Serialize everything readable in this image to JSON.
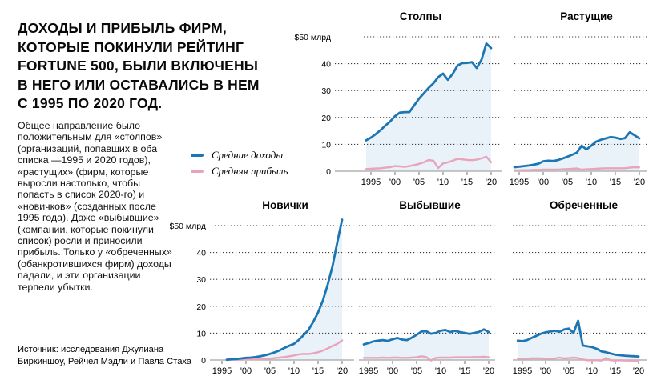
{
  "header": {
    "lines": [
      "ДОХОДЫ И ПРИБЫЛЬ ФИРМ,",
      "КОТОРЫЕ ПОКИНУЛИ РЕЙТИНГ",
      "FORTUNE 500, БЫЛИ ВКЛЮЧЕНЫ",
      "В НЕГО ИЛИ ОСТАВАЛИСЬ В НЕМ",
      "С 1995 ПО 2020 ГОД."
    ]
  },
  "intro": {
    "text": "Общее направление было положительным для «столпов» (организаций, попавших в оба списка —1995 и 2020 годов), «растущих» (фирм, которые выросли настолько, чтобы попасть в список 2020-го) и «новичков» (созданных после 1995 года). Даже «выбывшие» (компании, которые покинули список) росли и приносили прибыль. Только у «обреченных» (обанкротившихся фирм) доходы падали, и эти организации терпели убытки."
  },
  "legend": {
    "items": [
      {
        "label": "Средние доходы",
        "color": "#1d76b4"
      },
      {
        "label": "Средняя прибыль",
        "color": "#e8a4ba"
      }
    ]
  },
  "source": {
    "lines": [
      "Источник: исследования Джулиана",
      "Биркиншоу, Рейчел Мэдли и Павла Стаха"
    ]
  },
  "colors": {
    "revenue": "#1d76b4",
    "profit": "#e8a4ba",
    "area_fill": "#e9f1f9",
    "grid": "#3c3c3c",
    "axis": "#b3b3b3",
    "tick": "#8a8a8a",
    "text": "#000000"
  },
  "chart_data": [
    {
      "type": "line",
      "title": "Столпы",
      "unit": "$ млрд",
      "ylim": [
        0,
        50
      ],
      "grid": "dotted-horizontal",
      "show_y_labels": true,
      "y_ticks": [
        0,
        10,
        20,
        30,
        40,
        50
      ],
      "y_tick_labels": [
        "0",
        "10",
        "20",
        "30",
        "40",
        "$50 млрд"
      ],
      "x_tick_years": [
        1995,
        2000,
        2005,
        2010,
        2015,
        2020
      ],
      "x_tick_labels": [
        "1995",
        "'00",
        "'05",
        "'10",
        "'15",
        "'20"
      ],
      "years": [
        1994,
        1995,
        1996,
        1997,
        1998,
        1999,
        2000,
        2001,
        2002,
        2003,
        2004,
        2005,
        2006,
        2007,
        2008,
        2009,
        2010,
        2011,
        2012,
        2013,
        2014,
        2015,
        2016,
        2017,
        2018,
        2019,
        2020
      ],
      "series": [
        {
          "name": "Средние доходы",
          "values": [
            11.5,
            12.5,
            13.8,
            15.3,
            17.0,
            18.5,
            20.5,
            21.8,
            22.0,
            22.0,
            24.5,
            27.0,
            29.0,
            31.0,
            32.7,
            35.0,
            36.3,
            34.0,
            36.2,
            39.3,
            40.2,
            40.3,
            40.6,
            38.4,
            41.5,
            47.5,
            45.8
          ]
        },
        {
          "name": "Средняя прибыль",
          "values": [
            0.8,
            0.9,
            1.0,
            1.1,
            1.3,
            1.5,
            1.9,
            1.8,
            1.6,
            1.9,
            2.3,
            2.7,
            3.3,
            4.2,
            3.9,
            1.2,
            2.9,
            3.3,
            3.9,
            4.6,
            4.4,
            4.2,
            4.1,
            4.3,
            4.8,
            5.4,
            3.3
          ]
        }
      ]
    },
    {
      "type": "line",
      "title": "Растущие",
      "unit": "$ млрд",
      "ylim": [
        0,
        50
      ],
      "grid": "dotted-horizontal",
      "show_y_labels": false,
      "y_ticks": [
        0,
        10,
        20,
        30,
        40,
        50
      ],
      "y_tick_labels": [
        "0",
        "10",
        "20",
        "30",
        "40",
        "$50 млрд"
      ],
      "x_tick_years": [
        1995,
        2000,
        2005,
        2010,
        2015,
        2020
      ],
      "x_tick_labels": [
        "1995",
        "'00",
        "'05",
        "'10",
        "'15",
        "'20"
      ],
      "years": [
        1994,
        1995,
        1996,
        1997,
        1998,
        1999,
        2000,
        2001,
        2002,
        2003,
        2004,
        2005,
        2006,
        2007,
        2008,
        2009,
        2010,
        2011,
        2012,
        2013,
        2014,
        2015,
        2016,
        2017,
        2018,
        2019,
        2020
      ],
      "series": [
        {
          "name": "Средние доходы",
          "values": [
            1.5,
            1.7,
            1.9,
            2.1,
            2.4,
            2.8,
            3.7,
            3.9,
            3.8,
            4.1,
            4.7,
            5.4,
            6.1,
            6.9,
            9.5,
            8.1,
            9.5,
            11.0,
            11.7,
            12.2,
            12.7,
            12.5,
            12.0,
            12.3,
            14.5,
            13.4,
            12.2
          ]
        },
        {
          "name": "Средняя прибыль",
          "values": [
            0.3,
            0.3,
            0.4,
            0.4,
            0.5,
            0.5,
            0.6,
            0.6,
            0.6,
            0.6,
            0.7,
            0.8,
            0.9,
            1.0,
            0.6,
            0.7,
            0.8,
            0.9,
            1.0,
            1.1,
            1.1,
            1.1,
            1.1,
            1.1,
            1.3,
            1.5,
            1.4
          ]
        }
      ]
    },
    {
      "type": "line",
      "title": "Новички",
      "unit": "$ млрд",
      "ylim": [
        0,
        50
      ],
      "grid": "dotted-horizontal",
      "show_y_labels": true,
      "y_ticks": [
        0,
        10,
        20,
        30,
        40,
        50
      ],
      "y_tick_labels": [
        "0",
        "10",
        "20",
        "30",
        "40",
        "$50 млрд"
      ],
      "x_tick_years": [
        1995,
        2000,
        2005,
        2010,
        2015,
        2020
      ],
      "x_tick_labels": [
        "1995",
        "'00",
        "'05",
        "'10",
        "'15",
        "'20"
      ],
      "years": [
        1994,
        1995,
        1996,
        1997,
        1998,
        1999,
        2000,
        2001,
        2002,
        2003,
        2004,
        2005,
        2006,
        2007,
        2008,
        2009,
        2010,
        2011,
        2012,
        2013,
        2014,
        2015,
        2016,
        2017,
        2018,
        2019,
        2020
      ],
      "series": [
        {
          "name": "Средние доходы",
          "values": [
            null,
            null,
            0.1,
            0.3,
            0.4,
            0.6,
            0.8,
            0.9,
            1.1,
            1.4,
            1.8,
            2.3,
            2.9,
            3.6,
            4.5,
            5.3,
            6.0,
            7.5,
            9.3,
            11.2,
            14.2,
            17.7,
            22.1,
            28.0,
            34.9,
            43.8,
            52.2
          ]
        },
        {
          "name": "Средняя прибыль",
          "values": [
            null,
            null,
            0.05,
            0.1,
            0.1,
            0.15,
            0.2,
            0.25,
            0.3,
            0.35,
            0.4,
            0.5,
            0.7,
            0.9,
            1.1,
            1.4,
            1.7,
            2.1,
            2.3,
            2.2,
            2.5,
            2.9,
            3.5,
            4.3,
            5.2,
            6.0,
            7.3
          ]
        }
      ]
    },
    {
      "type": "line",
      "title": "Выбывшие",
      "unit": "$ млрд",
      "ylim": [
        0,
        50
      ],
      "grid": "dotted-horizontal",
      "show_y_labels": false,
      "y_ticks": [
        0,
        10,
        20,
        30,
        40,
        50
      ],
      "y_tick_labels": [
        "0",
        "10",
        "20",
        "30",
        "40",
        "$50 млрд"
      ],
      "x_tick_years": [
        1995,
        2000,
        2005,
        2010,
        2015,
        2020
      ],
      "x_tick_labels": [
        "1995",
        "'00",
        "'05",
        "'10",
        "'15",
        "'20"
      ],
      "years": [
        1994,
        1995,
        1996,
        1997,
        1998,
        1999,
        2000,
        2001,
        2002,
        2003,
        2004,
        2005,
        2006,
        2007,
        2008,
        2009,
        2010,
        2011,
        2012,
        2013,
        2014,
        2015,
        2016,
        2017,
        2018,
        2019,
        2020
      ],
      "series": [
        {
          "name": "Средние доходы",
          "values": [
            5.8,
            6.3,
            6.9,
            7.2,
            7.4,
            7.1,
            7.7,
            8.2,
            7.6,
            7.4,
            8.3,
            9.4,
            10.6,
            10.7,
            9.8,
            10.1,
            10.9,
            11.2,
            10.4,
            10.9,
            10.4,
            10.1,
            9.7,
            10.1,
            10.5,
            11.4,
            10.4
          ]
        },
        {
          "name": "Средняя прибыль",
          "values": [
            0.8,
            0.8,
            0.8,
            0.8,
            0.9,
            0.8,
            0.9,
            0.9,
            0.8,
            0.8,
            0.9,
            1.0,
            1.4,
            1.1,
            -0.2,
            0.8,
            0.9,
            0.9,
            0.9,
            1.0,
            1.0,
            1.0,
            1.0,
            1.1,
            1.1,
            1.2,
            1.0
          ]
        }
      ]
    },
    {
      "type": "line",
      "title": "Обреченные",
      "unit": "$ млрд",
      "ylim": [
        0,
        50
      ],
      "grid": "dotted-horizontal",
      "show_y_labels": false,
      "y_ticks": [
        0,
        10,
        20,
        30,
        40,
        50
      ],
      "y_tick_labels": [
        "0",
        "10",
        "20",
        "30",
        "40",
        "$50 млрд"
      ],
      "x_tick_years": [
        1995,
        2000,
        2005,
        2010,
        2015,
        2020
      ],
      "x_tick_labels": [
        "1995",
        "'00",
        "'05",
        "'10",
        "'15",
        "'20"
      ],
      "years": [
        1994,
        1995,
        1996,
        1997,
        1998,
        1999,
        2000,
        2001,
        2002,
        2003,
        2004,
        2005,
        2006,
        2007,
        2008,
        2009,
        2010,
        2011,
        2012,
        2013,
        2014,
        2015,
        2016,
        2017,
        2018,
        2019,
        2020
      ],
      "series": [
        {
          "name": "Средние доходы",
          "values": [
            7.2,
            7.0,
            7.4,
            8.2,
            9.0,
            9.8,
            10.3,
            10.6,
            10.9,
            10.5,
            11.4,
            11.7,
            10.1,
            14.6,
            5.4,
            5.1,
            4.8,
            4.2,
            3.2,
            2.9,
            2.4,
            2.0,
            1.8,
            1.6,
            1.5,
            1.4,
            1.3
          ]
        },
        {
          "name": "Средняя прибыль",
          "values": [
            0.5,
            0.5,
            0.5,
            0.6,
            0.6,
            0.6,
            0.5,
            0.5,
            0.6,
            0.9,
            0.6,
            0.7,
            0.9,
            0.7,
            0.2,
            -0.1,
            -0.1,
            -0.1,
            -0.2,
            0.7,
            -0.1,
            -0.2,
            -0.1,
            -0.2,
            -0.2,
            -0.3,
            -0.3
          ]
        }
      ]
    }
  ]
}
